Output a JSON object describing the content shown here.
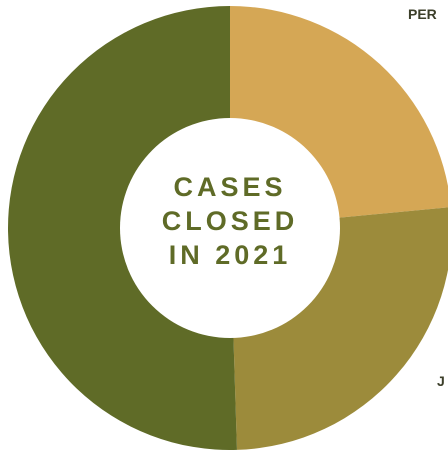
{
  "chart_data": {
    "type": "pie",
    "donut": true,
    "title_lines": [
      "CASES",
      "CLOSED",
      "IN 2021"
    ],
    "slices": [
      {
        "label": "PER",
        "value": 23.5,
        "color": "#d5a755"
      },
      {
        "label": "J",
        "value": 26,
        "color": "#9c8b3b"
      },
      {
        "label": "",
        "value": 50.5,
        "color": "#5f6b27"
      }
    ],
    "legend": "none"
  }
}
